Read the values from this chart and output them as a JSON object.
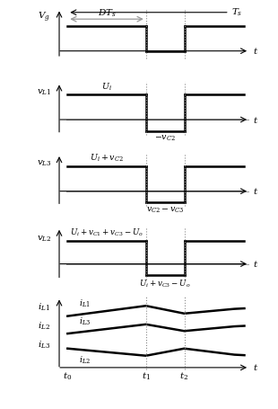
{
  "fig_width": 3.1,
  "fig_height": 4.55,
  "dpi": 100,
  "t0": 0.0,
  "t1": 0.47,
  "t2": 0.7,
  "t3": 1.0,
  "waveform_color": "#000000",
  "gray_color": "#999999",
  "bg_color": "#ffffff",
  "label_fontsize": 7.5,
  "small_fontsize": 6.8,
  "lw": 1.8,
  "gray_lw": 0.7
}
